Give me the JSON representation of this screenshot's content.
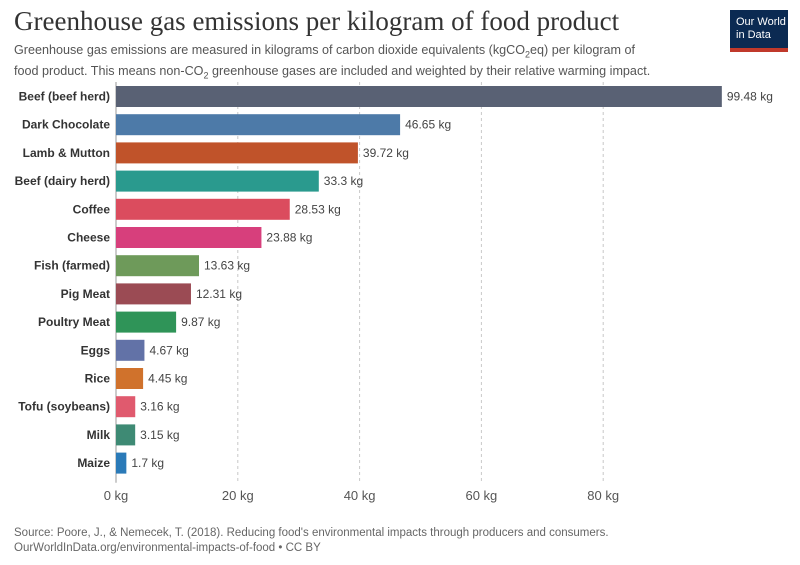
{
  "header": {
    "title": "Greenhouse gas emissions per kilogram of food product",
    "subtitle_line1_a": "Greenhouse gas emissions are measured in kilograms of carbon dioxide equivalents (kgCO",
    "subtitle_line1_sub": "2",
    "subtitle_line1_b": "eq) per kilogram of",
    "subtitle_line2_a": "food product. This means non-CO",
    "subtitle_line2_sub": "2",
    "subtitle_line2_b": " greenhouse gases are included and weighted by their relative warming impact."
  },
  "logo": {
    "line1": "Our World",
    "line2": "in Data",
    "icon": "owid-logo"
  },
  "footer": {
    "source": "Source: Poore, J., & Nemecek, T. (2018). Reducing food's environmental impacts through producers and consumers.",
    "link": "OurWorldInData.org/environmental-impacts-of-food • CC BY"
  },
  "chart_data": {
    "type": "bar",
    "orientation": "horizontal",
    "title": "Greenhouse gas emissions per kilogram of food product",
    "xlim": [
      0,
      100
    ],
    "xticks": [
      0,
      20,
      40,
      60,
      80
    ],
    "xtick_labels": [
      "0 kg",
      "20 kg",
      "40 kg",
      "60 kg",
      "80 kg"
    ],
    "grid": "vertical dashed",
    "value_unit": " kg",
    "categories": [
      "Beef (beef herd)",
      "Dark Chocolate",
      "Lamb & Mutton",
      "Beef (dairy herd)",
      "Coffee",
      "Cheese",
      "Fish (farmed)",
      "Pig Meat",
      "Poultry Meat",
      "Eggs",
      "Rice",
      "Tofu (soybeans)",
      "Milk",
      "Maize"
    ],
    "values": [
      99.48,
      46.65,
      39.72,
      33.3,
      28.53,
      23.88,
      13.63,
      12.31,
      9.87,
      4.67,
      4.45,
      3.16,
      3.15,
      1.7
    ],
    "colors": [
      "#596174",
      "#4d7aa8",
      "#c0532a",
      "#2a9a8e",
      "#db4c5e",
      "#d73f7c",
      "#6e9a5a",
      "#9b4b54",
      "#2f9458",
      "#6272a7",
      "#d0722c",
      "#e05a6e",
      "#3e8a74",
      "#2a7ab8"
    ]
  }
}
